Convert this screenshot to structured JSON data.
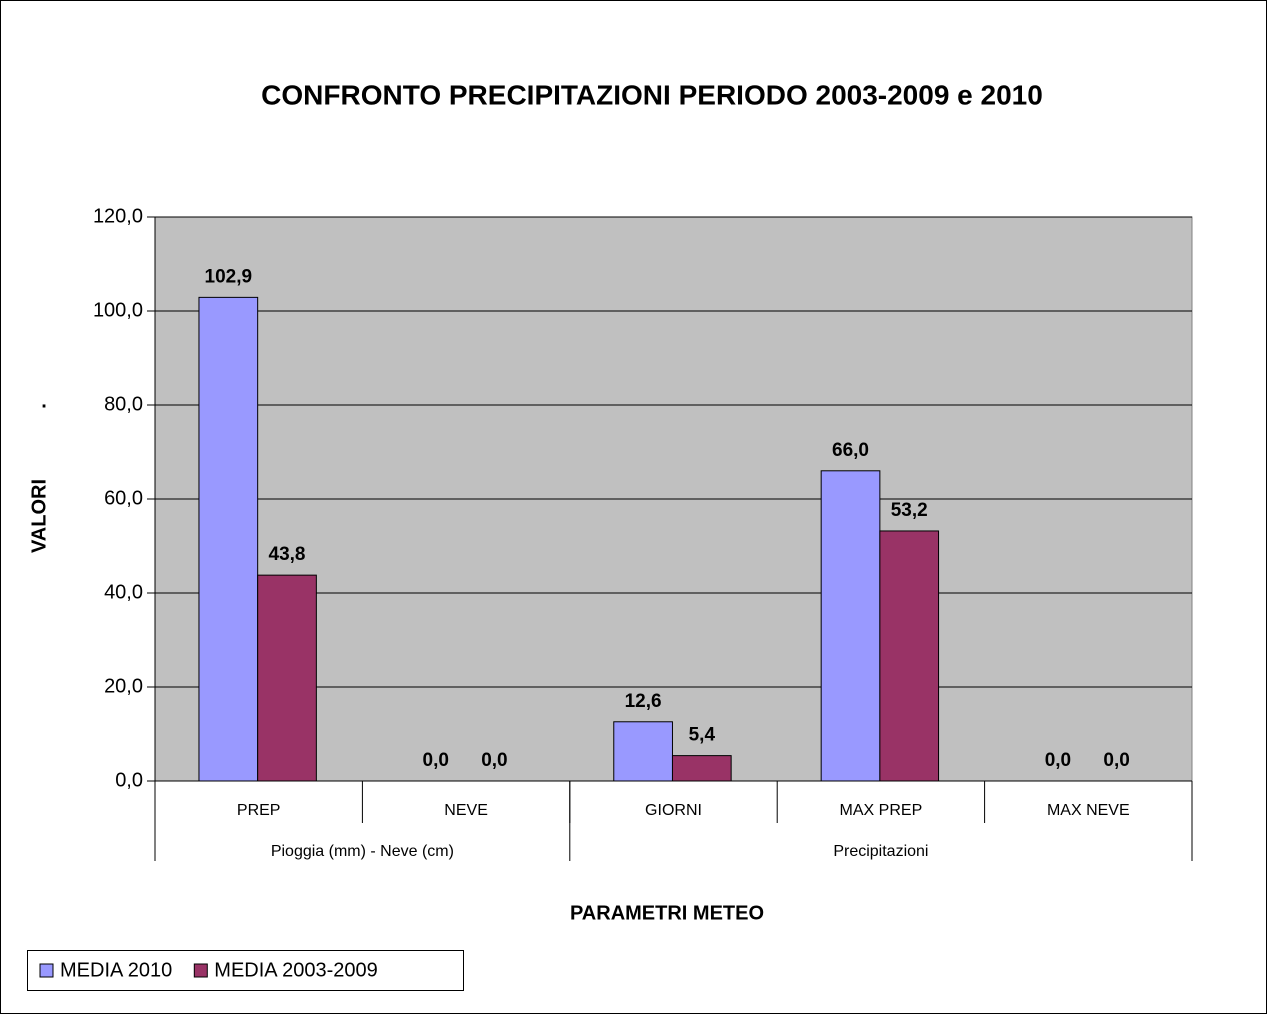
{
  "chart_data": {
    "type": "bar",
    "title": "CONFRONTO PRECIPITAZIONI PERIODO 2003-2009 e 2010",
    "y_label": "VALORI",
    "x_label": "PARAMETRI METEO",
    "annotation": ".",
    "categories": [
      "PREP",
      "NEVE",
      "GIORNI",
      "MAX PREP",
      "MAX NEVE"
    ],
    "groups": [
      {
        "label": "Pioggia (mm) - Neve (cm)",
        "span": 2
      },
      {
        "label": "Precipitazioni",
        "span": 3
      }
    ],
    "series": [
      {
        "name": "MEDIA 2010",
        "color": "#9999ff",
        "values": [
          102.9,
          0,
          12.6,
          66,
          0
        ],
        "value_labels": [
          "102,9",
          "0,0",
          "12,6",
          "66,0",
          "0,0"
        ]
      },
      {
        "name": "MEDIA 2003-2009",
        "color": "#993366",
        "values": [
          43.8,
          0,
          5.4,
          53.2,
          0
        ],
        "value_labels": [
          "43,8",
          "0,0",
          "5,4",
          "53,2",
          "0,0"
        ]
      }
    ],
    "ylim": [
      0,
      120
    ],
    "yticks": [
      {
        "value": 0,
        "label": "0,0"
      },
      {
        "value": 20,
        "label": "20,0"
      },
      {
        "value": 40,
        "label": "40,0"
      },
      {
        "value": 60,
        "label": "60,0"
      },
      {
        "value": 80,
        "label": "80,0"
      },
      {
        "value": 100,
        "label": "100,0"
      },
      {
        "value": 120,
        "label": "120,0"
      }
    ],
    "grid": true,
    "legend": "bottom-left",
    "plot_background": "#c0c0c0"
  }
}
